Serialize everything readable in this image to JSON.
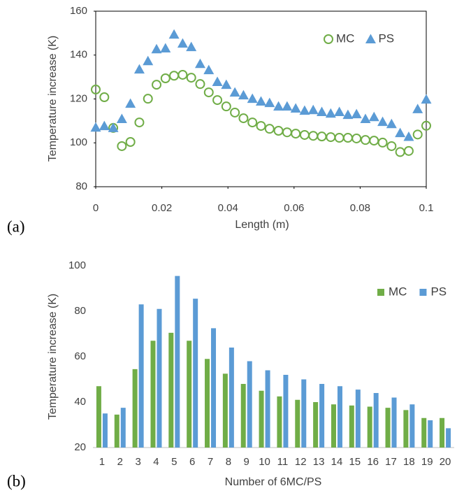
{
  "chart_data": [
    {
      "type": "scatter",
      "panel_label": "(a)",
      "xlabel": "Length (m)",
      "ylabel": "Temperature increase (K)",
      "x": [
        0,
        0.0026,
        0.0053,
        0.0079,
        0.0105,
        0.0132,
        0.0158,
        0.0184,
        0.0211,
        0.0237,
        0.0263,
        0.0289,
        0.0316,
        0.0342,
        0.0368,
        0.0395,
        0.0421,
        0.0447,
        0.0474,
        0.05,
        0.0526,
        0.0553,
        0.0579,
        0.0605,
        0.0632,
        0.0658,
        0.0684,
        0.0711,
        0.0737,
        0.0763,
        0.0789,
        0.0816,
        0.0842,
        0.0868,
        0.0895,
        0.0921,
        0.0947,
        0.0974,
        0.1
      ],
      "series": [
        {
          "name": "MC",
          "color": "#70ad47",
          "marker": "circle-open",
          "values": [
            124.3,
            120.8,
            106.8,
            98.5,
            100.4,
            109.3,
            120.1,
            126.5,
            129.4,
            130.6,
            131,
            129.7,
            126.8,
            123,
            119.5,
            116.6,
            113.8,
            111.2,
            109.3,
            107.7,
            106.4,
            105.5,
            104.8,
            104.2,
            103.6,
            103.2,
            102.9,
            102.6,
            102.3,
            102.3,
            102,
            101.3,
            101,
            100.1,
            98.5,
            95.8,
            96.3,
            103.8,
            107.8
          ]
        },
        {
          "name": "PS",
          "color": "#5b9bd5",
          "marker": "triangle",
          "values": [
            107,
            107.7,
            106.8,
            110.9,
            117.9,
            133.5,
            137.3,
            142.7,
            143.1,
            149.4,
            145.3,
            143.7,
            136,
            133.2,
            127.8,
            126.5,
            123,
            121.7,
            120.1,
            118.9,
            118.2,
            116.6,
            116.6,
            115.7,
            114.7,
            115,
            114.1,
            113.4,
            114.1,
            112.8,
            113.1,
            110.9,
            111.8,
            109.6,
            108.6,
            104.5,
            102.8,
            115.4,
            119.8
          ]
        }
      ],
      "xlim": [
        0,
        0.1
      ],
      "xticks": [
        0,
        0.02,
        0.04,
        0.06,
        0.08,
        0.1
      ],
      "ylim": [
        80,
        160
      ],
      "yticks": [
        80,
        100,
        120,
        140,
        160
      ],
      "legend": "upper right"
    },
    {
      "type": "bar",
      "panel_label": "(b)",
      "xlabel": "Number of 6MC/PS",
      "ylabel": "Temperature increase (K)",
      "categories": [
        "1",
        "2",
        "3",
        "4",
        "5",
        "6",
        "7",
        "8",
        "9",
        "10",
        "11",
        "12",
        "13",
        "14",
        "15",
        "16",
        "17",
        "18",
        "19",
        "20"
      ],
      "series": [
        {
          "name": "MC",
          "color": "#70ad47",
          "values": [
            47,
            34.5,
            54.5,
            67,
            70.5,
            67,
            59,
            52.5,
            48,
            45,
            42.5,
            41,
            40,
            39,
            38.5,
            38,
            37.5,
            36.5,
            33,
            33
          ]
        },
        {
          "name": "PS",
          "color": "#5b9bd5",
          "values": [
            35,
            37.5,
            83,
            81,
            95.5,
            85.5,
            72.5,
            64,
            58,
            54,
            52,
            50,
            48,
            47,
            45.5,
            44,
            42,
            39,
            32,
            28.5
          ]
        }
      ],
      "ylim": [
        20,
        100
      ],
      "yticks": [
        20,
        40,
        60,
        80,
        100
      ],
      "legend": "upper right"
    }
  ]
}
